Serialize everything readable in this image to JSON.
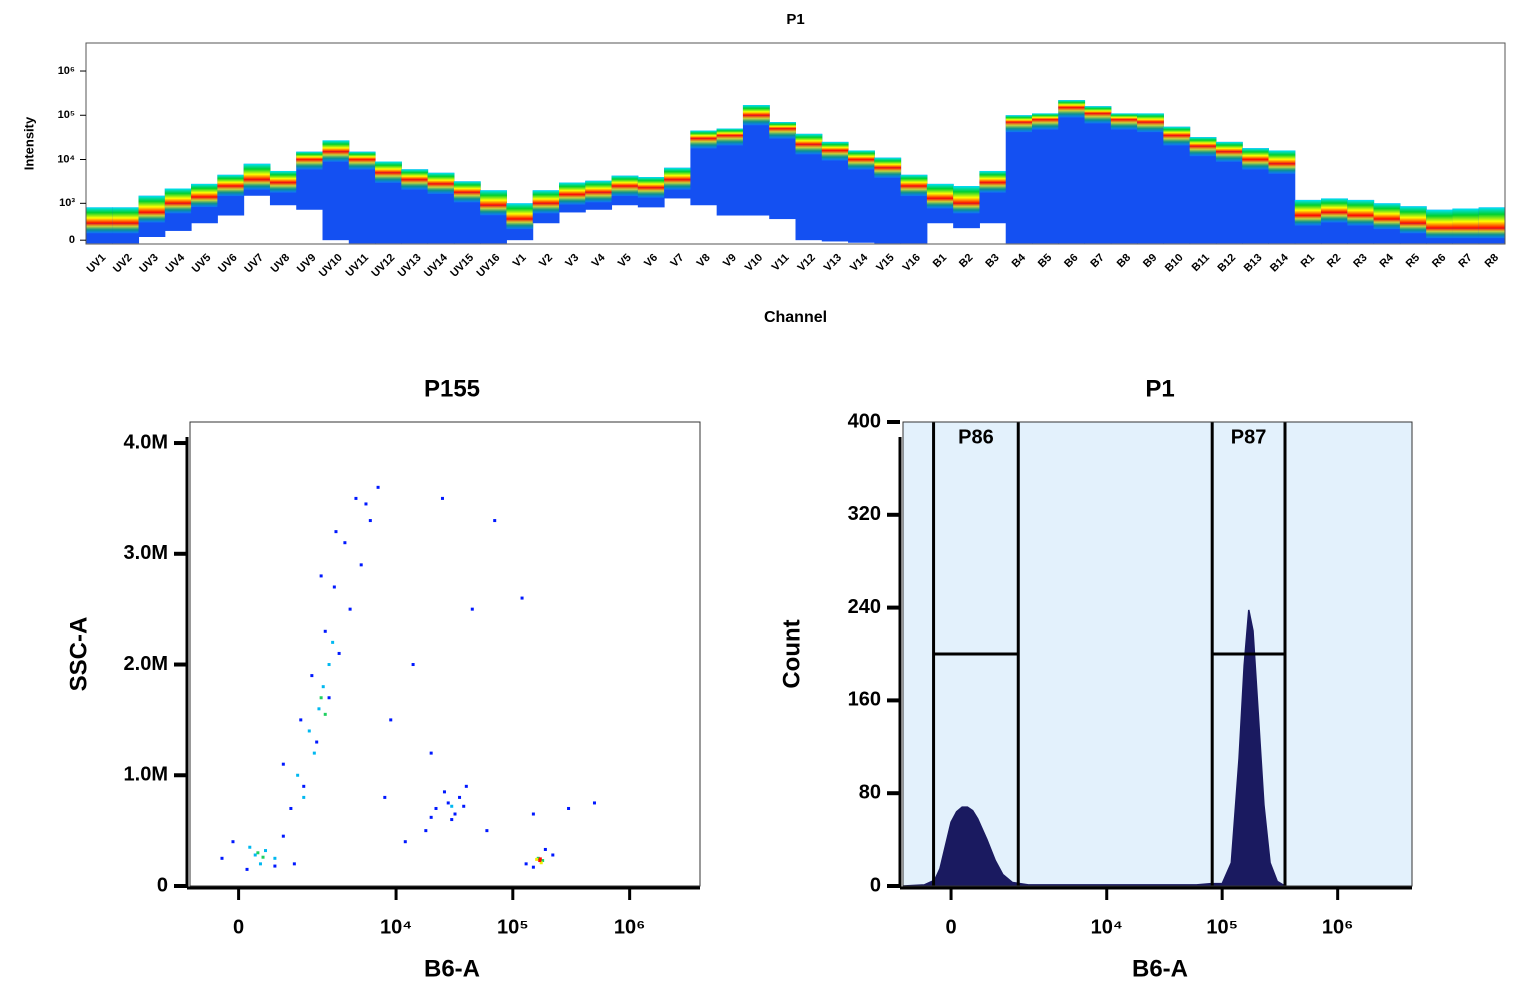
{
  "chart_data": [
    {
      "type": "spectrum",
      "title": "P1",
      "x_label": "Channel",
      "y_label": "Intensity",
      "yscale": "biexponential",
      "categories": [
        "UV1",
        "UV2",
        "UV3",
        "UV4",
        "UV5",
        "UV6",
        "UV7",
        "UV8",
        "UV9",
        "UV10",
        "UV11",
        "UV12",
        "UV13",
        "UV14",
        "UV15",
        "UV16",
        "V1",
        "V2",
        "V3",
        "V4",
        "V5",
        "V6",
        "V7",
        "V8",
        "V9",
        "V10",
        "V11",
        "V12",
        "V13",
        "V14",
        "V15",
        "V16",
        "B1",
        "B2",
        "B3",
        "B4",
        "B5",
        "B6",
        "B7",
        "B8",
        "B9",
        "B10",
        "B11",
        "B12",
        "B13",
        "B14",
        "R1",
        "R2",
        "R3",
        "R4",
        "R5",
        "R6",
        "R7",
        "R8"
      ],
      "values": [
        300,
        300,
        600,
        1000,
        1400,
        2500,
        3500,
        3000,
        10000,
        15000,
        10000,
        5000,
        3500,
        2800,
        1800,
        900,
        400,
        1000,
        1600,
        1800,
        2500,
        2300,
        3500,
        30000,
        35000,
        100000,
        50000,
        22000,
        16000,
        10000,
        6500,
        2500,
        1300,
        1000,
        3000,
        70000,
        80000,
        150000,
        110000,
        80000,
        70000,
        35000,
        20000,
        15000,
        10000,
        8000,
        500,
        600,
        500,
        400,
        300,
        200,
        200,
        200
      ],
      "high": [
        800,
        800,
        1500,
        2200,
        2800,
        4500,
        8000,
        5500,
        15000,
        27000,
        15000,
        9000,
        6000,
        5000,
        3200,
        2000,
        1000,
        2000,
        3000,
        3300,
        4300,
        4000,
        6500,
        45000,
        50000,
        170000,
        70000,
        38000,
        25000,
        16000,
        11000,
        4500,
        2800,
        2500,
        5500,
        100000,
        110000,
        220000,
        160000,
        110000,
        110000,
        55000,
        32000,
        25000,
        18000,
        16000,
        1200,
        1300,
        1200,
        1000,
        850,
        700,
        750,
        800
      ],
      "low": [
        -50,
        -50,
        50,
        150,
        300,
        500,
        1500,
        900,
        700,
        0,
        -50,
        -50,
        -50,
        -50,
        -50,
        -50,
        0,
        300,
        600,
        700,
        900,
        800,
        1300,
        900,
        500,
        500,
        400,
        0,
        -20,
        -40,
        -50,
        -50,
        300,
        200,
        300,
        -50,
        -50,
        -50,
        -50,
        -50,
        -50,
        -50,
        -50,
        -50,
        -50,
        -50,
        -50,
        -50,
        -50,
        -50,
        -50,
        -50,
        -50,
        -50
      ],
      "ylim": [
        -60,
        4300000
      ],
      "yticks": [
        0,
        {
          "value": 1000,
          "label": "10³"
        },
        {
          "value": 10000,
          "label": "10⁴"
        },
        {
          "value": 100000,
          "label": "10⁵"
        },
        {
          "value": 1000000,
          "label": "10⁶"
        }
      ],
      "colors": {
        "body": "#1450f2",
        "ramp": [
          "#00e0ff",
          "#00d030",
          "#ffff00",
          "#ff0000"
        ]
      }
    },
    {
      "type": "scatter",
      "title": "P155",
      "x_label": "B6-A",
      "y_label": "SSC-A",
      "xscale": "biexponential",
      "xlim": [
        -1000,
        4000000
      ],
      "ylim": [
        0,
        4190000
      ],
      "xticks": [
        0,
        {
          "value": 10000,
          "label": "10⁴"
        },
        {
          "value": 100000,
          "label": "10⁵"
        },
        {
          "value": 1000000,
          "label": "10⁶"
        }
      ],
      "yticks": [
        0,
        {
          "value": 1000000,
          "label": "1.0M"
        },
        {
          "value": 2000000,
          "label": "2.0M"
        },
        {
          "value": 3000000,
          "label": "3.0M"
        },
        {
          "value": 4000000,
          "label": "4.0M"
        }
      ],
      "series": [
        {
          "color": "#0018ff",
          "x": [
            150,
            700,
            -300,
            1200,
            900,
            -100,
            1100,
            1500,
            900,
            2000,
            1400,
            2600,
            1800,
            3200,
            2400,
            4000,
            2900,
            5000,
            3600,
            6000,
            4500,
            7000,
            5500,
            2200,
            3000,
            9000,
            14000,
            25000,
            45000,
            70000,
            120000,
            20000,
            8000,
            60000,
            150000,
            300000,
            500000,
            18000,
            40000,
            30000,
            35000,
            12000,
            22000,
            28000,
            32000,
            26000,
            38000,
            20000,
            130000,
            220000,
            190000,
            150000
          ],
          "y": [
            150000,
            180000,
            250000,
            200000,
            450000,
            400000,
            700000,
            900000,
            1100000,
            1300000,
            1500000,
            1700000,
            1900000,
            2100000,
            2300000,
            2500000,
            2700000,
            2900000,
            3100000,
            3300000,
            3500000,
            3600000,
            3450000,
            2800000,
            3200000,
            1500000,
            2000000,
            3500000,
            2500000,
            3300000,
            2600000,
            1200000,
            800000,
            500000,
            650000,
            700000,
            750000,
            500000,
            900000,
            600000,
            800000,
            400000,
            700000,
            750000,
            650000,
            850000,
            720000,
            620000,
            200000,
            280000,
            330000,
            170000
          ]
        },
        {
          "color": "#00b8f0",
          "x": [
            300,
            500,
            200,
            700,
            400,
            1300,
            1700,
            2100,
            2300,
            1900,
            2600,
            2800,
            1500,
            30000
          ],
          "y": [
            280000,
            320000,
            350000,
            250000,
            200000,
            1000000,
            1400000,
            1600000,
            1800000,
            1200000,
            2000000,
            2200000,
            800000,
            720000
          ]
        },
        {
          "color": "#20d060",
          "x": [
            350,
            450,
            2200,
            2400,
            165000,
            180000
          ],
          "y": [
            300000,
            260000,
            1700000,
            1550000,
            250000,
            230000
          ]
        },
        {
          "color": "#f0f000",
          "x": [
            160000,
            175000
          ],
          "y": [
            240000,
            210000
          ]
        },
        {
          "color": "#ff1000",
          "x": [
            170000,
            172000
          ],
          "y": [
            230000,
            245000
          ]
        }
      ]
    },
    {
      "type": "area",
      "title": "P1",
      "x_label": "B6-A",
      "y_label": "Count",
      "xscale": "biexponential",
      "xlim": [
        -1000,
        4400000
      ],
      "ylim": [
        0,
        400
      ],
      "xticks": [
        0,
        {
          "value": 10000,
          "label": "10⁴"
        },
        {
          "value": 100000,
          "label": "10⁵"
        },
        {
          "value": 1000000,
          "label": "10⁶"
        }
      ],
      "yticks": [
        0,
        80,
        160,
        240,
        320,
        400
      ],
      "x": [
        -1000,
        -500,
        -300,
        -200,
        -100,
        0,
        100,
        200,
        300,
        400,
        500,
        700,
        900,
        1100,
        1400,
        2000,
        3000,
        6000,
        10000,
        20000,
        40000,
        60000,
        80000,
        100000,
        120000,
        140000,
        155000,
        170000,
        185000,
        205000,
        230000,
        260000,
        300000,
        350000
      ],
      "values": [
        0,
        1,
        5,
        15,
        35,
        55,
        64,
        68,
        68,
        65,
        58,
        40,
        22,
        10,
        3,
        1,
        1,
        1,
        1,
        1,
        1,
        1,
        2,
        2,
        20,
        110,
        190,
        238,
        220,
        150,
        70,
        20,
        4,
        0
      ],
      "color": "#1a1a60",
      "background": "#e3f1fc",
      "gates": [
        {
          "name": "P86",
          "range": [
            -320,
            1600
          ],
          "level": 200
        },
        {
          "name": "P87",
          "range": [
            82000,
            350000
          ],
          "level": 200
        }
      ]
    }
  ]
}
